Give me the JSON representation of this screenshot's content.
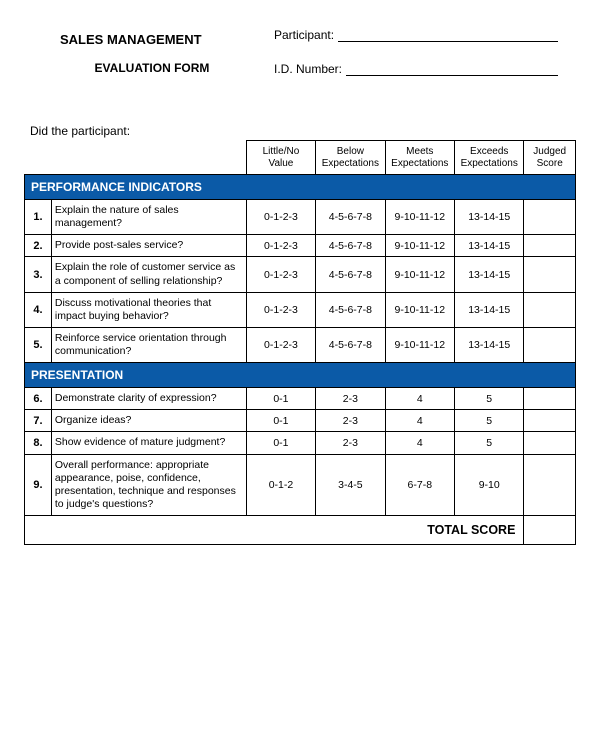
{
  "header": {
    "title_main": "SALES MANAGEMENT",
    "title_sub": "EVALUATION FORM",
    "participant_label": "Participant:",
    "id_label": "I.D. Number:"
  },
  "prompt": "Did the participant:",
  "columns": {
    "c1": "Little/No\nValue",
    "c2": "Below\nExpectations",
    "c3": "Meets\nExpectations",
    "c4": "Exceeds\nExpectations",
    "c5": "Judged\nScore"
  },
  "section1": {
    "title": "PERFORMANCE INDICATORS",
    "rows": [
      {
        "n": "1.",
        "item": "Explain the nature of sales management?",
        "s1": "0-1-2-3",
        "s2": "4-5-6-7-8",
        "s3": "9-10-11-12",
        "s4": "13-14-15"
      },
      {
        "n": "2.",
        "item": "Provide post-sales service?",
        "s1": "0-1-2-3",
        "s2": "4-5-6-7-8",
        "s3": "9-10-11-12",
        "s4": "13-14-15"
      },
      {
        "n": "3.",
        "item": "Explain the role of customer service as a component of selling relationship?",
        "s1": "0-1-2-3",
        "s2": "4-5-6-7-8",
        "s3": "9-10-11-12",
        "s4": "13-14-15"
      },
      {
        "n": "4.",
        "item": "Discuss motivational theories that impact buying behavior?",
        "s1": "0-1-2-3",
        "s2": "4-5-6-7-8",
        "s3": "9-10-11-12",
        "s4": "13-14-15"
      },
      {
        "n": "5.",
        "item": "Reinforce service orientation through communication?",
        "s1": "0-1-2-3",
        "s2": "4-5-6-7-8",
        "s3": "9-10-11-12",
        "s4": "13-14-15"
      }
    ]
  },
  "section2": {
    "title": "PRESENTATION",
    "rows": [
      {
        "n": "6.",
        "item": "Demonstrate clarity of expression?",
        "s1": "0-1",
        "s2": "2-3",
        "s3": "4",
        "s4": "5"
      },
      {
        "n": "7.",
        "item": "Organize ideas?",
        "s1": "0-1",
        "s2": "2-3",
        "s3": "4",
        "s4": "5"
      },
      {
        "n": "8.",
        "item": "Show evidence of mature judgment?",
        "s1": "0-1",
        "s2": "2-3",
        "s3": "4",
        "s4": "5"
      },
      {
        "n": "9.",
        "item": "Overall performance: appropriate appearance, poise, confidence, presentation, technique and responses to judge's questions?",
        "s1": "0-1-2",
        "s2": "3-4-5",
        "s3": "6-7-8",
        "s4": "9-10"
      }
    ]
  },
  "total_label": "TOTAL SCORE",
  "colors": {
    "section_bg": "#0b5aa7",
    "section_fg": "#ffffff",
    "border": "#000000"
  }
}
